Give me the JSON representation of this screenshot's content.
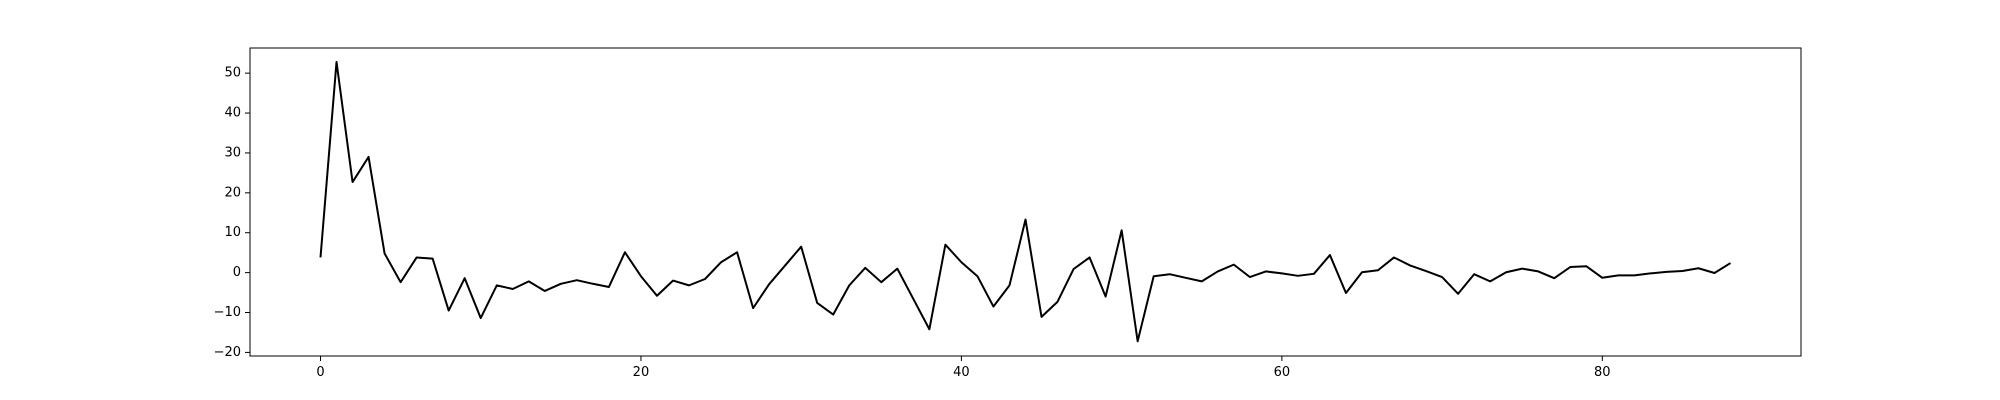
{
  "chart_data": {
    "type": "line",
    "title": "",
    "xlabel": "",
    "ylabel": "",
    "xlim": [
      -4.4,
      92.4
    ],
    "ylim": [
      -20.9,
      56.3
    ],
    "xticks": [
      0,
      20,
      40,
      60,
      80
    ],
    "yticks": [
      -20,
      -10,
      0,
      10,
      20,
      30,
      40,
      50
    ],
    "grid": false,
    "legend": "none",
    "colors": {
      "line": "#000000",
      "frame": "#000000",
      "background": "#ffffff"
    },
    "series": [
      {
        "x": [
          0,
          1,
          2,
          3,
          4,
          5,
          6,
          7,
          8,
          9,
          10,
          11,
          12,
          13,
          14,
          15,
          16,
          17,
          18,
          19,
          20,
          21,
          22,
          23,
          24,
          25,
          26,
          27,
          28,
          29,
          30,
          31,
          32,
          33,
          34,
          35,
          36,
          37,
          38,
          39,
          40,
          41,
          42,
          43,
          44,
          45,
          46,
          47,
          48,
          49,
          50,
          51,
          52,
          53,
          54,
          55,
          56,
          57,
          58,
          59,
          60,
          61,
          62,
          63,
          64,
          65,
          66,
          67,
          68,
          69,
          70,
          71,
          72,
          73,
          74,
          75,
          76,
          77,
          78,
          79,
          80,
          81,
          82,
          83,
          84,
          85,
          86,
          87,
          88
        ],
        "values": [
          3.8,
          52.8,
          22.7,
          29.0,
          4.8,
          -2.4,
          3.8,
          3.5,
          -9.5,
          -1.4,
          -11.4,
          -3.2,
          -4.1,
          -2.2,
          -4.6,
          -2.8,
          -1.9,
          -2.8,
          -3.6,
          5.1,
          -0.9,
          -5.8,
          -2.0,
          -3.2,
          -1.6,
          2.6,
          5.1,
          -8.9,
          -2.9,
          1.8,
          6.5,
          -7.6,
          -10.5,
          -3.2,
          1.2,
          -2.4,
          1.0,
          -6.6,
          -14.2,
          7.0,
          2.6,
          -0.9,
          -8.5,
          -3.2,
          13.3,
          -11.1,
          -7.3,
          0.9,
          3.8,
          -6.0,
          10.6,
          -17.2,
          -0.9,
          -0.4,
          -1.3,
          -2.2,
          0.3,
          2.0,
          -1.1,
          0.3,
          -0.2,
          -0.8,
          -0.3,
          4.4,
          -5.1,
          0.1,
          0.6,
          3.8,
          1.8,
          0.4,
          -1.1,
          -5.3,
          -0.4,
          -2.2,
          0.1,
          1.0,
          0.3,
          -1.4,
          1.4,
          1.6,
          -1.3,
          -0.7,
          -0.7,
          -0.2,
          0.2,
          0.4,
          1.1,
          -0.1,
          2.4
        ]
      }
    ]
  }
}
